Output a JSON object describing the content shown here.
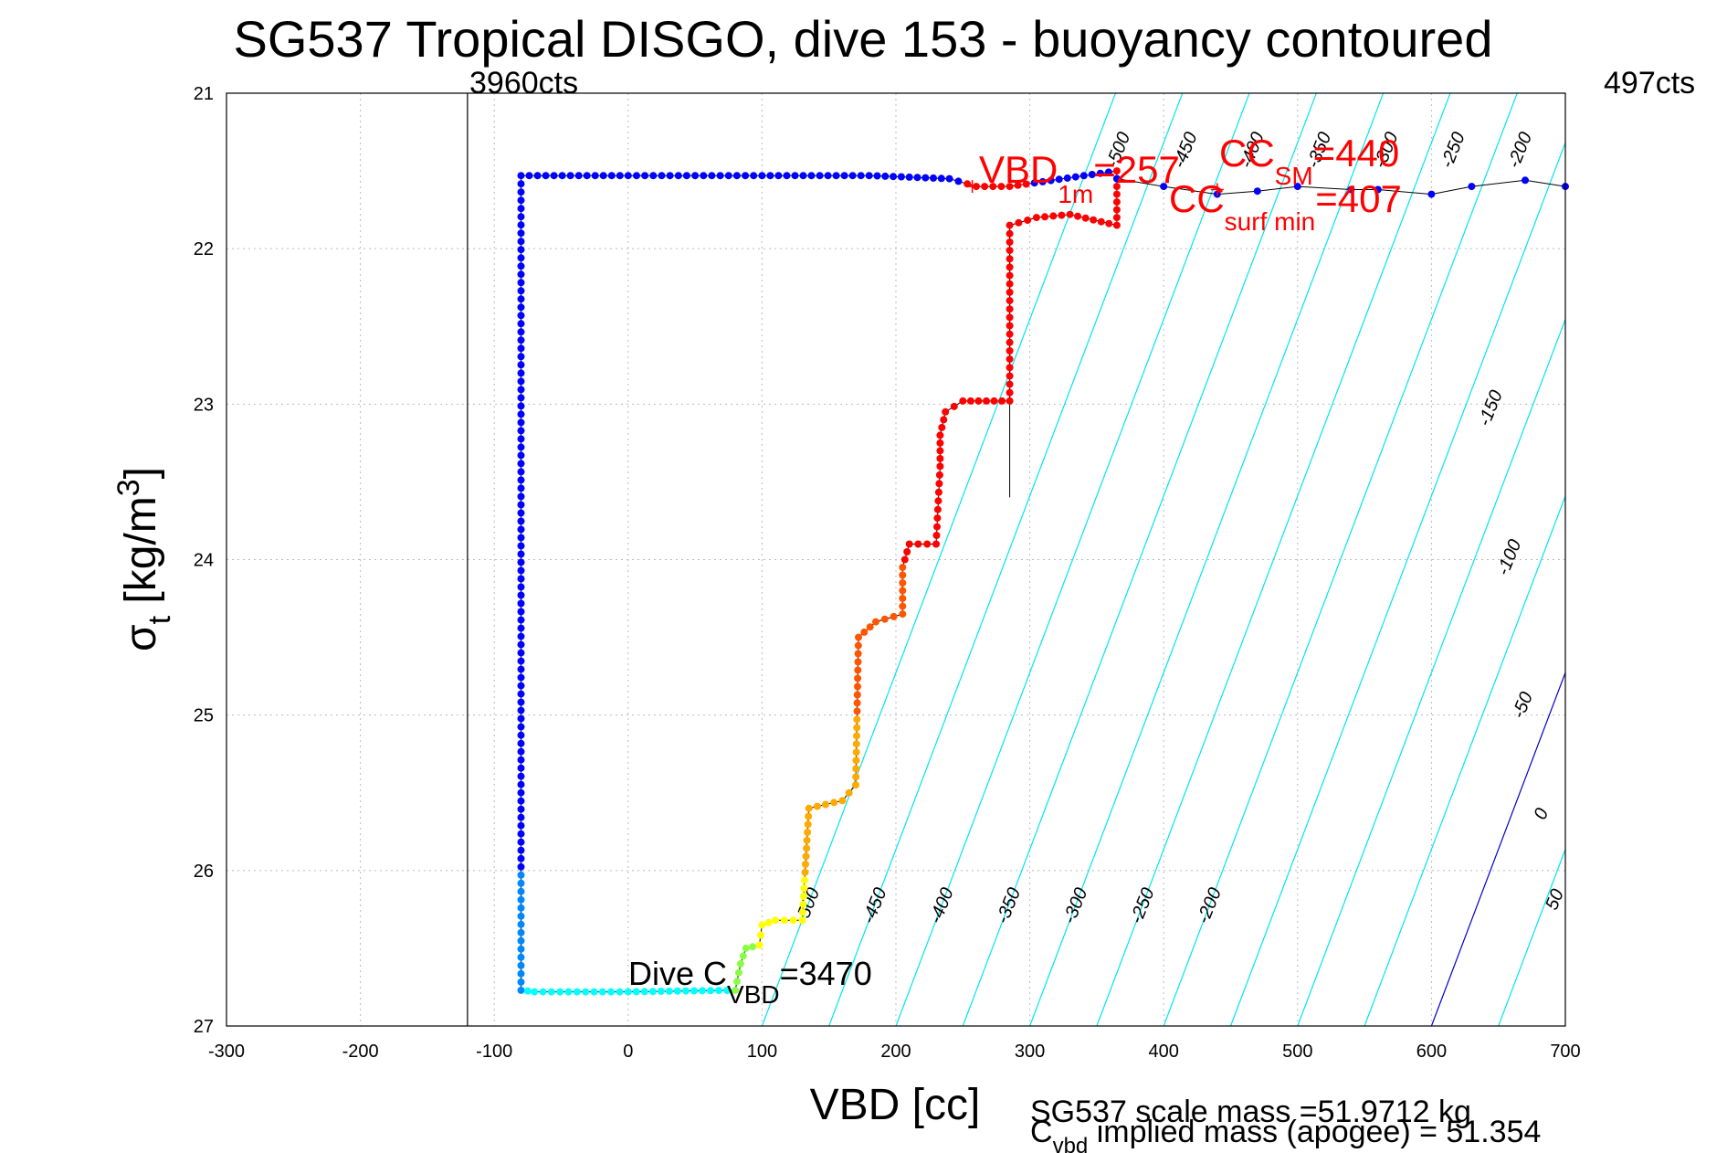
{
  "chart_data": {
    "type": "scatter",
    "title": "SG537 Tropical DISGO, dive 153 - buoyancy contoured",
    "xlabel": "VBD [cc]",
    "ylabel_main": "σ",
    "ylabel_sub": "t",
    "ylabel_units": "[kg/m",
    "ylabel_sup": "3",
    "ylabel_close": "]",
    "xlim": [
      -300,
      700
    ],
    "ylim": [
      21,
      27
    ],
    "y_reversed": true,
    "grid": true,
    "x_ticks": [
      -300,
      -200,
      -100,
      0,
      100,
      200,
      300,
      400,
      500,
      600,
      700
    ],
    "y_ticks": [
      21,
      22,
      23,
      24,
      25,
      26,
      27
    ],
    "vline_min_cc": -120,
    "vline_min_label": "3960cts",
    "vline_max_label": "497cts",
    "contour_color": "#00e5ee",
    "zero_contour_color": "#0000cc",
    "contour_slope_cc_per_sigma": 44,
    "contour_levels": [
      -500,
      -450,
      -400,
      -350,
      -300,
      -250,
      -200,
      -150,
      -100,
      -50,
      0,
      50
    ],
    "contour_labels_bottom": [
      "-500",
      "-450",
      "-400",
      "-350",
      "-300",
      "-250",
      "-200"
    ],
    "contour_labels_right": [
      "-150",
      "-100",
      "-50",
      "0",
      "50"
    ],
    "contour_labels_top": [
      "-500",
      "-450",
      "-400",
      "-350",
      "-300",
      "-250",
      "-200"
    ],
    "annotations": {
      "dive_c_prefix": "Dive C",
      "dive_c_sub": "VBD",
      "dive_c_value": "=3470",
      "vbd1m_prefix": "VBD",
      "vbd1m_sub": "1m",
      "vbd1m_value": "=257",
      "ccsm_prefix": "CC",
      "ccsm_sub": "SM",
      "ccsm_value": "=440",
      "ccsurf_prefix": "CC",
      "ccsurf_sub": "surf min",
      "ccsurf_value": "=407",
      "scale_mass": "SG537 scale mass =51.9712 kg",
      "implied_prefix": "C",
      "implied_sub": "vbd",
      "implied_text": " implied mass (apogee) = 51.354"
    },
    "marker_points": [
      [
        257,
        21.6
      ],
      [
        440,
        21.62
      ]
    ],
    "series": [
      {
        "type": "line",
        "color": "#000000",
        "points": [
          [
            -80,
            21.53
          ],
          [
            -80,
            26.77
          ],
          [
            -70,
            26.78
          ],
          [
            0,
            26.78
          ],
          [
            80,
            26.77
          ],
          [
            84,
            26.6
          ],
          [
            88,
            26.5
          ],
          [
            98,
            26.48
          ],
          [
            100,
            26.35
          ],
          [
            110,
            26.32
          ],
          [
            130,
            26.32
          ],
          [
            135,
            25.6
          ],
          [
            160,
            25.55
          ],
          [
            170,
            25.45
          ],
          [
            172,
            24.5
          ],
          [
            185,
            24.4
          ],
          [
            205,
            24.35
          ],
          [
            205,
            24.05
          ],
          [
            210,
            23.9
          ],
          [
            230,
            23.9
          ],
          [
            233,
            23.4
          ],
          [
            233,
            23.2
          ],
          [
            237,
            23.05
          ],
          [
            250,
            22.98
          ],
          [
            285,
            22.98
          ],
          [
            285,
            21.85
          ],
          [
            305,
            21.8
          ],
          [
            330,
            21.78
          ],
          [
            365,
            21.85
          ],
          [
            365,
            21.5
          ],
          [
            285,
            21.6
          ],
          [
            260,
            21.6
          ],
          [
            240,
            21.55
          ],
          [
            180,
            21.53
          ],
          [
            100,
            21.53
          ],
          [
            0,
            21.53
          ],
          [
            -80,
            21.53
          ]
        ]
      },
      {
        "type": "line",
        "color": "#000000",
        "points": [
          [
            285,
            21.85
          ],
          [
            285,
            23.6
          ]
        ]
      },
      {
        "type": "line",
        "color": "#000000",
        "points": [
          [
            365,
            21.55
          ],
          [
            400,
            21.6
          ],
          [
            440,
            21.65
          ],
          [
            470,
            21.63
          ],
          [
            500,
            21.6
          ],
          [
            540,
            21.62
          ],
          [
            560,
            21.62
          ],
          [
            600,
            21.65
          ],
          [
            630,
            21.6
          ],
          [
            670,
            21.56
          ],
          [
            700,
            21.6
          ]
        ]
      }
    ],
    "colormap": [
      "#0000aa",
      "#0000ff",
      "#0088ff",
      "#00ffff",
      "#88ff44",
      "#ffff00",
      "#ffaa00",
      "#ff5500",
      "#ff0000"
    ]
  }
}
